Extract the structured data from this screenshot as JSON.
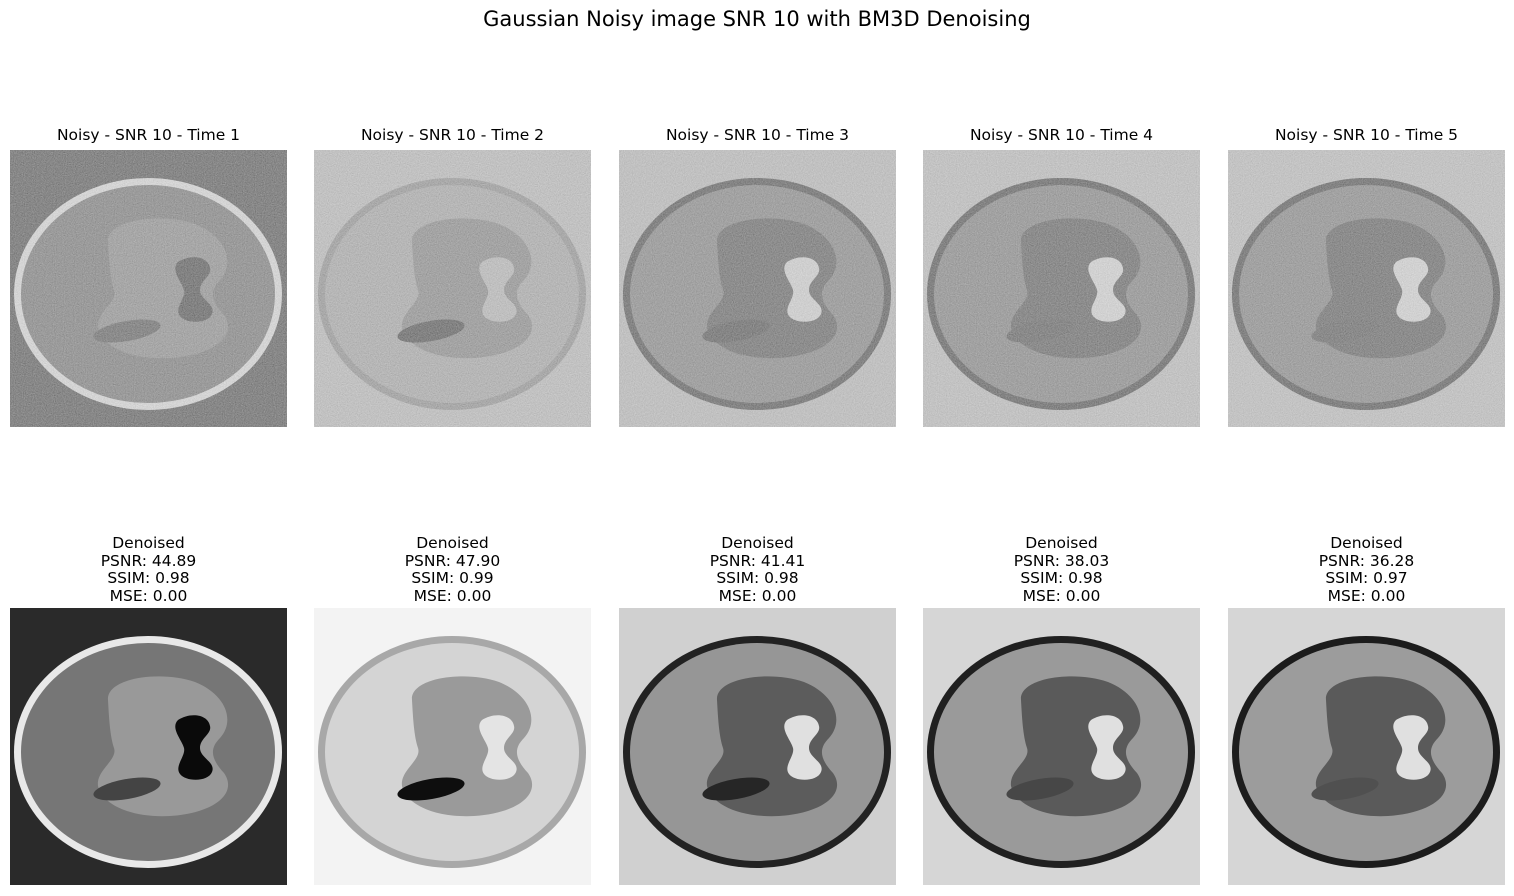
{
  "figure": {
    "title": "Gaussian Noisy image SNR 10 with BM3D Denoising"
  },
  "noisy_panels": [
    {
      "title": "Noisy - SNR 10 - Time 1",
      "background": "#3a3a3a",
      "ring": "#e6e6e6",
      "body": "#7a7a7a",
      "organ": "#959595",
      "hole": "#1a1a1a",
      "ellipse": "#4d4d4d"
    },
    {
      "title": "Noisy - SNR 10 - Time 2",
      "background": "#c8c8c8",
      "ring": "#9a9a9a",
      "body": "#b3b3b3",
      "organ": "#8f8f8f",
      "hole": "#c4c4c4",
      "ellipse": "#1e1e1e"
    },
    {
      "title": "Noisy - SNR 10 - Time 3",
      "background": "#c6c6c6",
      "ring": "#2a2a2a",
      "body": "#8c8c8c",
      "organ": "#555555",
      "hole": "#dedede",
      "ellipse": "#333333"
    },
    {
      "title": "Noisy - SNR 10 - Time 4",
      "background": "#c9c9c9",
      "ring": "#242424",
      "body": "#8a8a8a",
      "organ": "#505050",
      "hole": "#e2e2e2",
      "ellipse": "#444444"
    },
    {
      "title": "Noisy - SNR 10 - Time 5",
      "background": "#cbcbcb",
      "ring": "#222222",
      "body": "#8c8c8c",
      "organ": "#505050",
      "hole": "#e2e2e2",
      "ellipse": "#4a4a4a"
    }
  ],
  "denoised_panels": [
    {
      "label": "Denoised",
      "psnr": "PSNR: 44.89",
      "ssim": "SSIM: 0.98",
      "mse": "MSE: 0.00",
      "background": "#2a2a2a",
      "ring": "#e8e8e8",
      "body": "#767676",
      "organ": "#999999",
      "hole": "#0a0a0a",
      "ellipse": "#444444"
    },
    {
      "label": "Denoised",
      "psnr": "PSNR: 47.90",
      "ssim": "SSIM: 0.99",
      "mse": "MSE: 0.00",
      "background": "#f3f3f3",
      "ring": "#a8a8a8",
      "body": "#d4d4d4",
      "organ": "#9a9a9a",
      "hole": "#e4e4e4",
      "ellipse": "#0e0e0e"
    },
    {
      "label": "Denoised",
      "psnr": "PSNR: 41.41",
      "ssim": "SSIM: 0.98",
      "mse": "MSE: 0.00",
      "background": "#d0d0d0",
      "ring": "#222222",
      "body": "#969696",
      "organ": "#5c5c5c",
      "hole": "#e0e0e0",
      "ellipse": "#262626"
    },
    {
      "label": "Denoised",
      "psnr": "PSNR: 38.03",
      "ssim": "SSIM: 0.98",
      "mse": "MSE: 0.00",
      "background": "#d6d6d6",
      "ring": "#202020",
      "body": "#9a9a9a",
      "organ": "#5a5a5a",
      "hole": "#e0e0e0",
      "ellipse": "#474747"
    },
    {
      "label": "Denoised",
      "psnr": "PSNR: 36.28",
      "ssim": "SSIM: 0.97",
      "mse": "MSE: 0.00",
      "background": "#d6d6d6",
      "ring": "#1c1c1c",
      "body": "#9c9c9c",
      "organ": "#5a5a5a",
      "hole": "#e0e0e0",
      "ellipse": "#505050"
    }
  ]
}
